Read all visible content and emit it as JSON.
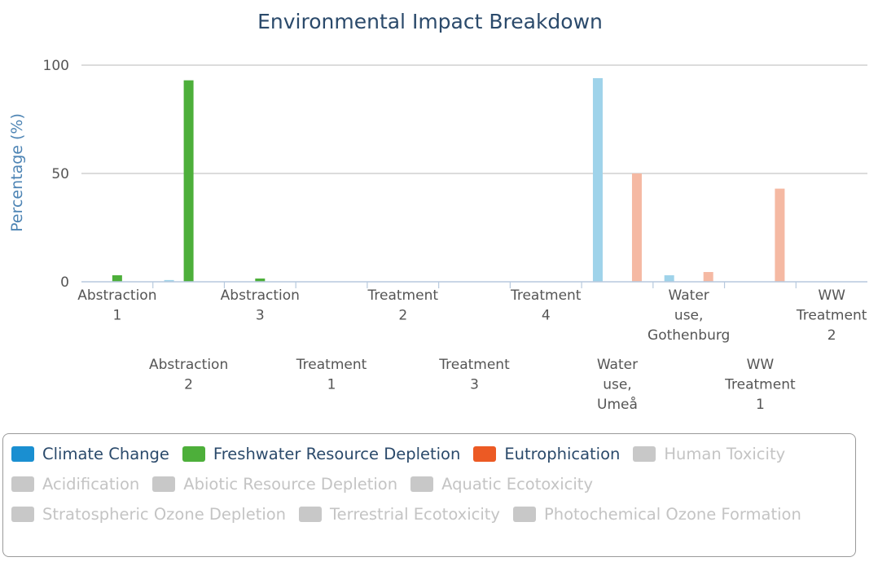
{
  "chart_data": {
    "type": "bar",
    "title": "Environmental Impact Breakdown",
    "ylabel": "Percentage (%)",
    "xlabel": "",
    "ylim": [
      0,
      100
    ],
    "yticks": [
      0,
      50,
      100
    ],
    "grid": true,
    "legend_position": "bottom",
    "categories": [
      [
        "Abstraction",
        "1"
      ],
      [
        "Abstraction",
        "2"
      ],
      [
        "Abstraction",
        "3"
      ],
      [
        "Treatment",
        "1"
      ],
      [
        "Treatment",
        "2"
      ],
      [
        "Treatment",
        "3"
      ],
      [
        "Treatment",
        "4"
      ],
      [
        "Water",
        "use,",
        "Umeå"
      ],
      [
        "Water",
        "use,",
        "Gothenburg"
      ],
      [
        "WW",
        "Treatment",
        "1"
      ],
      [
        "WW",
        "Treatment",
        "2"
      ]
    ],
    "series": [
      {
        "name": "Climate Change",
        "color": "#1a8fd1",
        "visible": true,
        "bar_color": "#9fd3ea",
        "values": [
          0,
          0.8,
          0,
          0,
          0,
          0,
          0,
          94,
          3,
          0,
          0
        ]
      },
      {
        "name": "Freshwater Resource Depletion",
        "color": "#4daf3a",
        "visible": true,
        "bar_color": "#4daf3a",
        "values": [
          3,
          93,
          1.5,
          0,
          0,
          0,
          0,
          0,
          0,
          0,
          0
        ]
      },
      {
        "name": "Eutrophication",
        "color": "#ec5a24",
        "visible": true,
        "bar_color": "#f5b9a3",
        "values": [
          0,
          0,
          0,
          0,
          0,
          0,
          0,
          50,
          4.5,
          43,
          0
        ]
      },
      {
        "name": "Human Toxicity",
        "color": "#c8c8c8",
        "visible": false
      },
      {
        "name": "Acidification",
        "color": "#c8c8c8",
        "visible": false
      },
      {
        "name": "Abiotic Resource Depletion",
        "color": "#c8c8c8",
        "visible": false
      },
      {
        "name": "Aquatic Ecotoxicity",
        "color": "#c8c8c8",
        "visible": false
      },
      {
        "name": "Stratospheric Ozone Depletion",
        "color": "#c8c8c8",
        "visible": false
      },
      {
        "name": "Terrestrial Ecotoxicity",
        "color": "#c8c8c8",
        "visible": false
      },
      {
        "name": "Photochemical Ozone Formation",
        "color": "#c8c8c8",
        "visible": false
      }
    ]
  }
}
